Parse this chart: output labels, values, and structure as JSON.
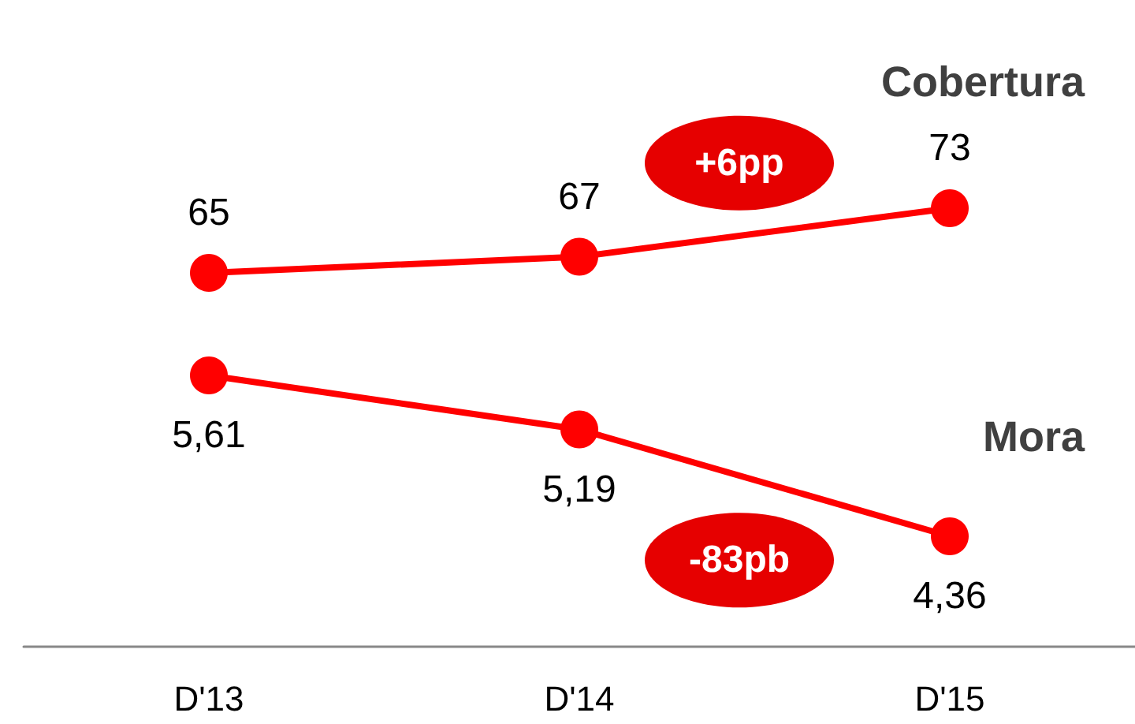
{
  "chart_data": [
    {
      "type": "line",
      "categories": [
        null,
        null,
        null
      ],
      "series": [
        {
          "name": "Cobertura",
          "color": "#ff0000",
          "values": [
            65,
            67,
            73
          ],
          "value_labels": [
            "65",
            "67",
            "73"
          ]
        }
      ],
      "tick_labels": false,
      "marker": "circle",
      "line_style": "solid",
      "grid": false,
      "legend": false,
      "annotations": [
        "+6pp"
      ]
    },
    {
      "type": "line",
      "categories": [
        "D'13",
        "D'14",
        "D'15"
      ],
      "series": [
        {
          "name": "Mora",
          "color": "#ff0000",
          "values": [
            5.61,
            5.19,
            4.36
          ],
          "value_labels": [
            "5,61",
            "5,19",
            "4,36"
          ]
        }
      ],
      "tick_labels": "x",
      "marker": "circle",
      "line_style": "solid",
      "grid": false,
      "legend": false,
      "annotations": [
        "-83pb"
      ]
    }
  ]
}
